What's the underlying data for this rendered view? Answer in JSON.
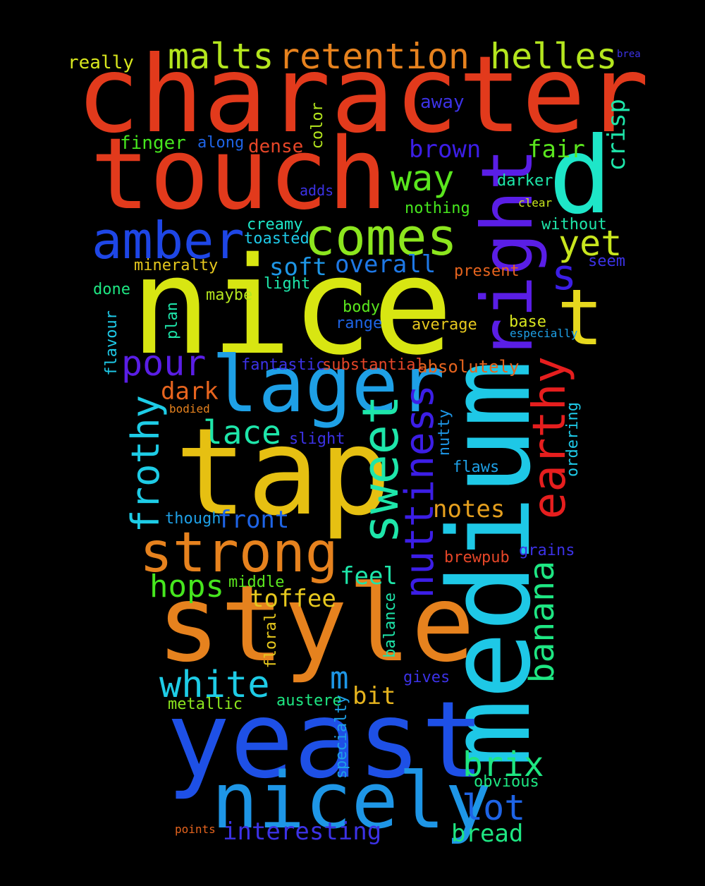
{
  "background": "#000000",
  "words": [
    {
      "text": "character",
      "color": "#e23a1c"
    },
    {
      "text": "touch",
      "color": "#e23a1c"
    },
    {
      "text": "nice",
      "color": "#d8e612"
    },
    {
      "text": "medium",
      "color": "#1ec8e6"
    },
    {
      "text": "tap",
      "color": "#e6c012"
    },
    {
      "text": "yeast",
      "color": "#1e50e6"
    },
    {
      "text": "style",
      "color": "#e6821e"
    },
    {
      "text": "nicely",
      "color": "#1e96e6"
    },
    {
      "text": "lager",
      "color": "#1ea0e6"
    },
    {
      "text": "right",
      "color": "#5a1ee6"
    },
    {
      "text": "d",
      "color": "#1ee6c8"
    },
    {
      "text": "amber",
      "color": "#1e46e6"
    },
    {
      "text": "comes",
      "color": "#8ce61e"
    },
    {
      "text": "strong",
      "color": "#e6821e"
    },
    {
      "text": "sweet",
      "color": "#1ee6aa"
    },
    {
      "text": "nuttiness",
      "color": "#3c1ee6"
    },
    {
      "text": "earthy",
      "color": "#e61e1e"
    },
    {
      "text": "banana",
      "color": "#1ee682"
    },
    {
      "text": "t",
      "color": "#e6d81e"
    },
    {
      "text": "frothy",
      "color": "#1ecce6"
    },
    {
      "text": "maltsretention",
      "color": "#e6821e"
    },
    {
      "text": "malts",
      "color": "#b4e61e"
    },
    {
      "text": "retention",
      "color": "#e6821e"
    },
    {
      "text": "helles",
      "color": "#b4e61e"
    },
    {
      "text": "way",
      "color": "#5ae61e"
    },
    {
      "text": "yet",
      "color": "#c8e61e"
    },
    {
      "text": "pour",
      "color": "#5a1ee6"
    },
    {
      "text": "lace",
      "color": "#1ee6aa"
    },
    {
      "text": "white",
      "color": "#1ecce6"
    },
    {
      "text": "brix",
      "color": "#1ee682"
    },
    {
      "text": "lot",
      "color": "#1e64e6"
    },
    {
      "text": "hops",
      "color": "#46e61e"
    },
    {
      "text": "s",
      "color": "#3c1ee6"
    },
    {
      "text": "m",
      "color": "#1e96e6"
    },
    {
      "text": "brown",
      "color": "#3c1ee6"
    },
    {
      "text": "fair",
      "color": "#5ae61e"
    },
    {
      "text": "crisp",
      "color": "#1ee6aa"
    },
    {
      "text": "overall",
      "color": "#1e78e6"
    },
    {
      "text": "soft",
      "color": "#1e96e6"
    },
    {
      "text": "dark",
      "color": "#e6641e"
    },
    {
      "text": "front",
      "color": "#1e64e6"
    },
    {
      "text": "notes",
      "color": "#e6a01e"
    },
    {
      "text": "feel",
      "color": "#1ee6aa"
    },
    {
      "text": "toffee",
      "color": "#e6c81e"
    },
    {
      "text": "bit",
      "color": "#e6b41e"
    },
    {
      "text": "interesting",
      "color": "#3c32e6"
    },
    {
      "text": "bread",
      "color": "#1ee682"
    },
    {
      "text": "really",
      "color": "#d8e61e"
    },
    {
      "text": "finger",
      "color": "#46e61e"
    },
    {
      "text": "along",
      "color": "#1e64e6"
    },
    {
      "text": "dense",
      "color": "#e64628"
    },
    {
      "text": "color",
      "color": "#b4e61e"
    },
    {
      "text": "away",
      "color": "#3c32e6"
    },
    {
      "text": "darker",
      "color": "#1ee6aa"
    },
    {
      "text": "clear",
      "color": "#c8e61e"
    },
    {
      "text": "adds",
      "color": "#3c32e6"
    },
    {
      "text": "nothing",
      "color": "#46e61e"
    },
    {
      "text": "creamy",
      "color": "#1ee6c8"
    },
    {
      "text": "toasted",
      "color": "#1ec8e6"
    },
    {
      "text": "without",
      "color": "#1ee6aa"
    },
    {
      "text": "seem",
      "color": "#3c32e6"
    },
    {
      "text": "mineralty",
      "color": "#e6c81e"
    },
    {
      "text": "present",
      "color": "#e6641e"
    },
    {
      "text": "done",
      "color": "#1ee682"
    },
    {
      "text": "maybe",
      "color": "#b4e61e"
    },
    {
      "text": "light",
      "color": "#1ee6aa"
    },
    {
      "text": "plan",
      "color": "#1ee6aa"
    },
    {
      "text": "body",
      "color": "#5ae61e"
    },
    {
      "text": "range",
      "color": "#1e64e6"
    },
    {
      "text": "average",
      "color": "#e6c81e"
    },
    {
      "text": "base",
      "color": "#d8e61e"
    },
    {
      "text": "especially",
      "color": "#1ea0e6"
    },
    {
      "text": "flavour",
      "color": "#1ec8e6"
    },
    {
      "text": "fantastic",
      "color": "#3c32e6"
    },
    {
      "text": "substantial",
      "color": "#e64628"
    },
    {
      "text": "absolutely",
      "color": "#e6641e"
    },
    {
      "text": "bodied",
      "color": "#e6821e"
    },
    {
      "text": "ordering",
      "color": "#1ec8e6"
    },
    {
      "text": "slight",
      "color": "#3c32e6"
    },
    {
      "text": "nutty",
      "color": "#1e96e6"
    },
    {
      "text": "flaws",
      "color": "#1ea0e6"
    },
    {
      "text": "though",
      "color": "#1ea0e6"
    },
    {
      "text": "grains",
      "color": "#3c32e6"
    },
    {
      "text": "brewpub",
      "color": "#e64628"
    },
    {
      "text": "middle",
      "color": "#5ae61e"
    },
    {
      "text": "balance",
      "color": "#1ee6aa"
    },
    {
      "text": "floral",
      "color": "#e6c81e"
    },
    {
      "text": "gives",
      "color": "#3c32e6"
    },
    {
      "text": "metallic",
      "color": "#8ce61e"
    },
    {
      "text": "austere",
      "color": "#1ee682"
    },
    {
      "text": "specialty",
      "color": "#1ea0e6"
    },
    {
      "text": "obvious",
      "color": "#1ee682"
    },
    {
      "text": "points",
      "color": "#e6641e"
    },
    {
      "text": "brea",
      "color": "#3c32e6"
    }
  ]
}
